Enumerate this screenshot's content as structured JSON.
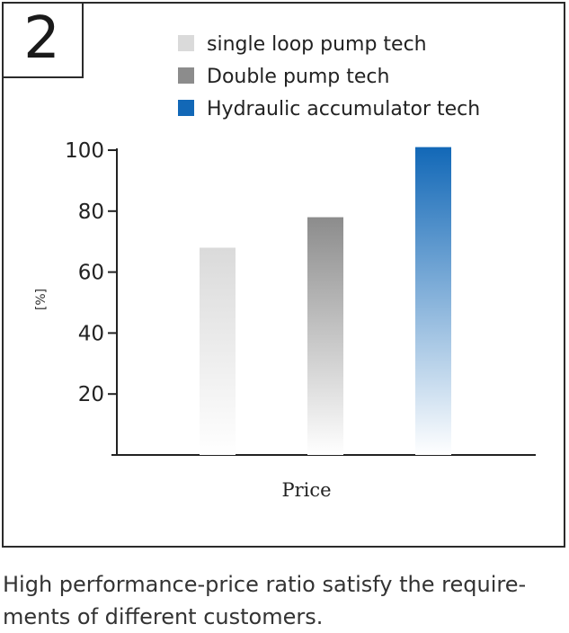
{
  "badge_number": "2",
  "caption": {
    "line1": "High performance-price ratio satisfy the require-",
    "line2": "ments of different customers."
  },
  "chart_data": {
    "type": "bar",
    "title": "",
    "categories": [
      "single loop pump tech",
      "Double pump tech",
      "Hydraulic accumulator tech"
    ],
    "values": [
      68,
      78,
      101
    ],
    "xlabel": "Price",
    "ylabel": "[%]",
    "yticks": [
      20,
      40,
      60,
      80,
      100
    ],
    "ylim": [
      0,
      100
    ],
    "grid": false,
    "legend": "top",
    "colors": [
      "#dadada",
      "#8c8c8c",
      "#1268b7"
    ]
  }
}
